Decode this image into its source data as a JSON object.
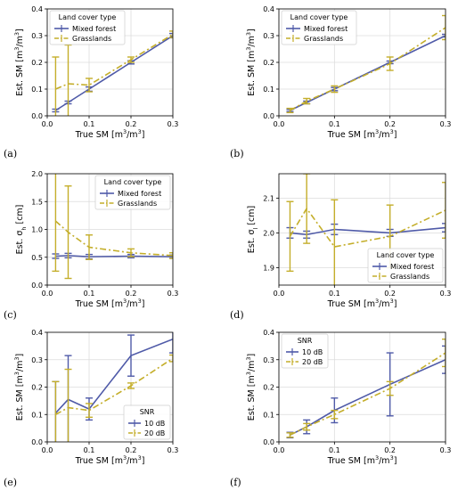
{
  "colors": {
    "mixed": "#4f5aa8",
    "grass": "#c4ae2a"
  },
  "chart_data": [
    {
      "id": "a",
      "type": "line",
      "panel_label": "(a)",
      "xlabel": "True SM [m³/m³]",
      "ylabel": "Est. SM [m³/m³]",
      "xlim": [
        0,
        0.3
      ],
      "ylim": [
        0,
        0.4
      ],
      "xticks": [
        0.0,
        0.1,
        0.2,
        0.3
      ],
      "yticks": [
        0.0,
        0.1,
        0.2,
        0.3,
        0.4
      ],
      "xticklabels": [
        "0.0",
        "0.1",
        "0.2",
        "0.3"
      ],
      "yticklabels": [
        "0.0",
        "0.1",
        "0.2",
        "0.3",
        "0.4"
      ],
      "grid": true,
      "legend": {
        "title": "Land cover type",
        "position": "top-left"
      },
      "x": [
        0.02,
        0.05,
        0.1,
        0.2,
        0.3
      ],
      "series": [
        {
          "name": "Mixed forest",
          "style": "solid",
          "color": "#4f5aa8",
          "values": [
            0.02,
            0.05,
            0.1,
            0.2,
            0.3
          ],
          "err": [
            0.005,
            0.005,
            0.008,
            0.006,
            0.008
          ]
        },
        {
          "name": "Grasslands",
          "style": "dashdot",
          "color": "#c4ae2a",
          "values": [
            0.1,
            0.12,
            0.115,
            0.21,
            0.305
          ],
          "err": [
            0.12,
            0.145,
            0.025,
            0.01,
            0.012
          ]
        }
      ]
    },
    {
      "id": "b",
      "type": "line",
      "panel_label": "(b)",
      "xlabel": "True SM [m³/m³]",
      "ylabel": "Est. SM [m³/m³]",
      "xlim": [
        0,
        0.3
      ],
      "ylim": [
        0,
        0.4
      ],
      "xticks": [
        0.0,
        0.1,
        0.2,
        0.3
      ],
      "yticks": [
        0.0,
        0.1,
        0.2,
        0.3,
        0.4
      ],
      "xticklabels": [
        "0.0",
        "0.1",
        "0.2",
        "0.3"
      ],
      "yticklabels": [
        "0.0",
        "0.1",
        "0.2",
        "0.3",
        "0.4"
      ],
      "grid": true,
      "legend": {
        "title": "Land cover type",
        "position": "top-left"
      },
      "x": [
        0.02,
        0.05,
        0.1,
        0.2,
        0.3
      ],
      "series": [
        {
          "name": "Mixed forest",
          "style": "solid",
          "color": "#4f5aa8",
          "values": [
            0.02,
            0.05,
            0.1,
            0.2,
            0.3
          ],
          "err": [
            0.004,
            0.005,
            0.006,
            0.005,
            0.005
          ]
        },
        {
          "name": "Grasslands",
          "style": "dashdot",
          "color": "#c4ae2a",
          "values": [
            0.02,
            0.055,
            0.1,
            0.195,
            0.33
          ],
          "err": [
            0.008,
            0.01,
            0.012,
            0.025,
            0.045
          ]
        }
      ]
    },
    {
      "id": "c",
      "type": "line",
      "panel_label": "(c)",
      "xlabel": "True SM [m³/m³]",
      "ylabel": "Est. σh [cm]",
      "ylabel_parts": [
        "Est. σ",
        "h",
        " [cm]"
      ],
      "xlim": [
        0,
        0.3
      ],
      "ylim": [
        0,
        2.0
      ],
      "xticks": [
        0.0,
        0.1,
        0.2,
        0.3
      ],
      "yticks": [
        0.0,
        0.5,
        1.0,
        1.5,
        2.0
      ],
      "xticklabels": [
        "0.0",
        "0.1",
        "0.2",
        "0.3"
      ],
      "yticklabels": [
        "0.0",
        "0.5",
        "1.0",
        "1.5",
        "2.0"
      ],
      "grid": true,
      "legend": {
        "title": "Land cover type",
        "position": "top-right"
      },
      "x": [
        0.02,
        0.05,
        0.1,
        0.2,
        0.3
      ],
      "series": [
        {
          "name": "Mixed forest",
          "style": "solid",
          "color": "#4f5aa8",
          "values": [
            0.52,
            0.53,
            0.51,
            0.52,
            0.51
          ],
          "err": [
            0.04,
            0.04,
            0.04,
            0.03,
            0.03
          ]
        },
        {
          "name": "Grasslands",
          "style": "dashdot",
          "color": "#c4ae2a",
          "values": [
            1.15,
            0.95,
            0.68,
            0.58,
            0.53
          ],
          "err": [
            0.9,
            0.83,
            0.22,
            0.07,
            0.05
          ]
        }
      ]
    },
    {
      "id": "d",
      "type": "line",
      "panel_label": "(d)",
      "xlabel": "True SM [m³/m³]",
      "ylabel": "Est. σl [cm]",
      "ylabel_parts": [
        "Est. σ",
        "l",
        " [cm]"
      ],
      "xlim": [
        0,
        0.3
      ],
      "ylim": [
        1.85,
        2.17
      ],
      "xticks": [
        0.0,
        0.1,
        0.2,
        0.3
      ],
      "yticks": [
        1.9,
        2.0,
        2.1
      ],
      "xticklabels": [
        "0.0",
        "0.1",
        "0.2",
        "0.3"
      ],
      "yticklabels": [
        "1.9",
        "2.0",
        "2.1"
      ],
      "grid": true,
      "legend": {
        "title": "Land cover type",
        "position": "bottom-right"
      },
      "x": [
        0.02,
        0.05,
        0.1,
        0.2,
        0.3
      ],
      "series": [
        {
          "name": "Mixed forest",
          "style": "solid",
          "color": "#4f5aa8",
          "values": [
            2.0,
            1.995,
            2.01,
            2.0,
            2.015
          ],
          "err": [
            0.015,
            0.01,
            0.015,
            0.01,
            0.012
          ]
        },
        {
          "name": "Grasslands",
          "style": "dashdot",
          "color": "#c4ae2a",
          "values": [
            1.99,
            2.07,
            1.96,
            1.99,
            2.065
          ],
          "err": [
            0.1,
            0.1,
            0.135,
            0.09,
            0.08
          ]
        }
      ]
    },
    {
      "id": "e",
      "type": "line",
      "panel_label": "(e)",
      "xlabel": "True SM [m³/m³]",
      "ylabel": "Est. SM [m³/m³]",
      "xlim": [
        0,
        0.3
      ],
      "ylim": [
        0,
        0.4
      ],
      "xticks": [
        0.0,
        0.1,
        0.2,
        0.3
      ],
      "yticks": [
        0.0,
        0.1,
        0.2,
        0.3,
        0.4
      ],
      "xticklabels": [
        "0.0",
        "0.1",
        "0.2",
        "0.3"
      ],
      "yticklabels": [
        "0.0",
        "0.1",
        "0.2",
        "0.3",
        "0.4"
      ],
      "grid": true,
      "legend": {
        "title": "SNR",
        "position": "bottom-right"
      },
      "x": [
        0.02,
        0.05,
        0.1,
        0.2,
        0.3
      ],
      "series": [
        {
          "name": "10 dB",
          "style": "solid",
          "color": "#4f5aa8",
          "values": [
            0.105,
            0.155,
            0.12,
            0.315,
            0.375
          ],
          "err": [
            0.115,
            0.16,
            0.04,
            0.075,
            0.05
          ]
        },
        {
          "name": "20 dB",
          "style": "dashdot",
          "color": "#c4ae2a",
          "values": [
            0.1,
            0.125,
            0.115,
            0.205,
            0.305
          ],
          "err": [
            0.12,
            0.14,
            0.025,
            0.01,
            0.012
          ]
        }
      ]
    },
    {
      "id": "f",
      "type": "line",
      "panel_label": "(f)",
      "xlabel": "True SM [m³/m³]",
      "ylabel": "Est. SM [m³/m³]",
      "xlim": [
        0,
        0.3
      ],
      "ylim": [
        0,
        0.4
      ],
      "xticks": [
        0.0,
        0.1,
        0.2,
        0.3
      ],
      "yticks": [
        0.0,
        0.1,
        0.2,
        0.3,
        0.4
      ],
      "xticklabels": [
        "0.0",
        "0.1",
        "0.2",
        "0.3"
      ],
      "yticklabels": [
        "0.0",
        "0.1",
        "0.2",
        "0.3",
        "0.4"
      ],
      "grid": true,
      "legend": {
        "title": "SNR",
        "position": "top-left"
      },
      "x": [
        0.02,
        0.05,
        0.1,
        0.2,
        0.3
      ],
      "series": [
        {
          "name": "10 dB",
          "style": "solid",
          "color": "#4f5aa8",
          "values": [
            0.025,
            0.055,
            0.115,
            0.21,
            0.3
          ],
          "err": [
            0.01,
            0.025,
            0.045,
            0.115,
            0.05
          ]
        },
        {
          "name": "20 dB",
          "style": "dashdot",
          "color": "#c4ae2a",
          "values": [
            0.025,
            0.055,
            0.1,
            0.195,
            0.325
          ],
          "err": [
            0.008,
            0.012,
            0.015,
            0.025,
            0.05
          ]
        }
      ]
    }
  ]
}
